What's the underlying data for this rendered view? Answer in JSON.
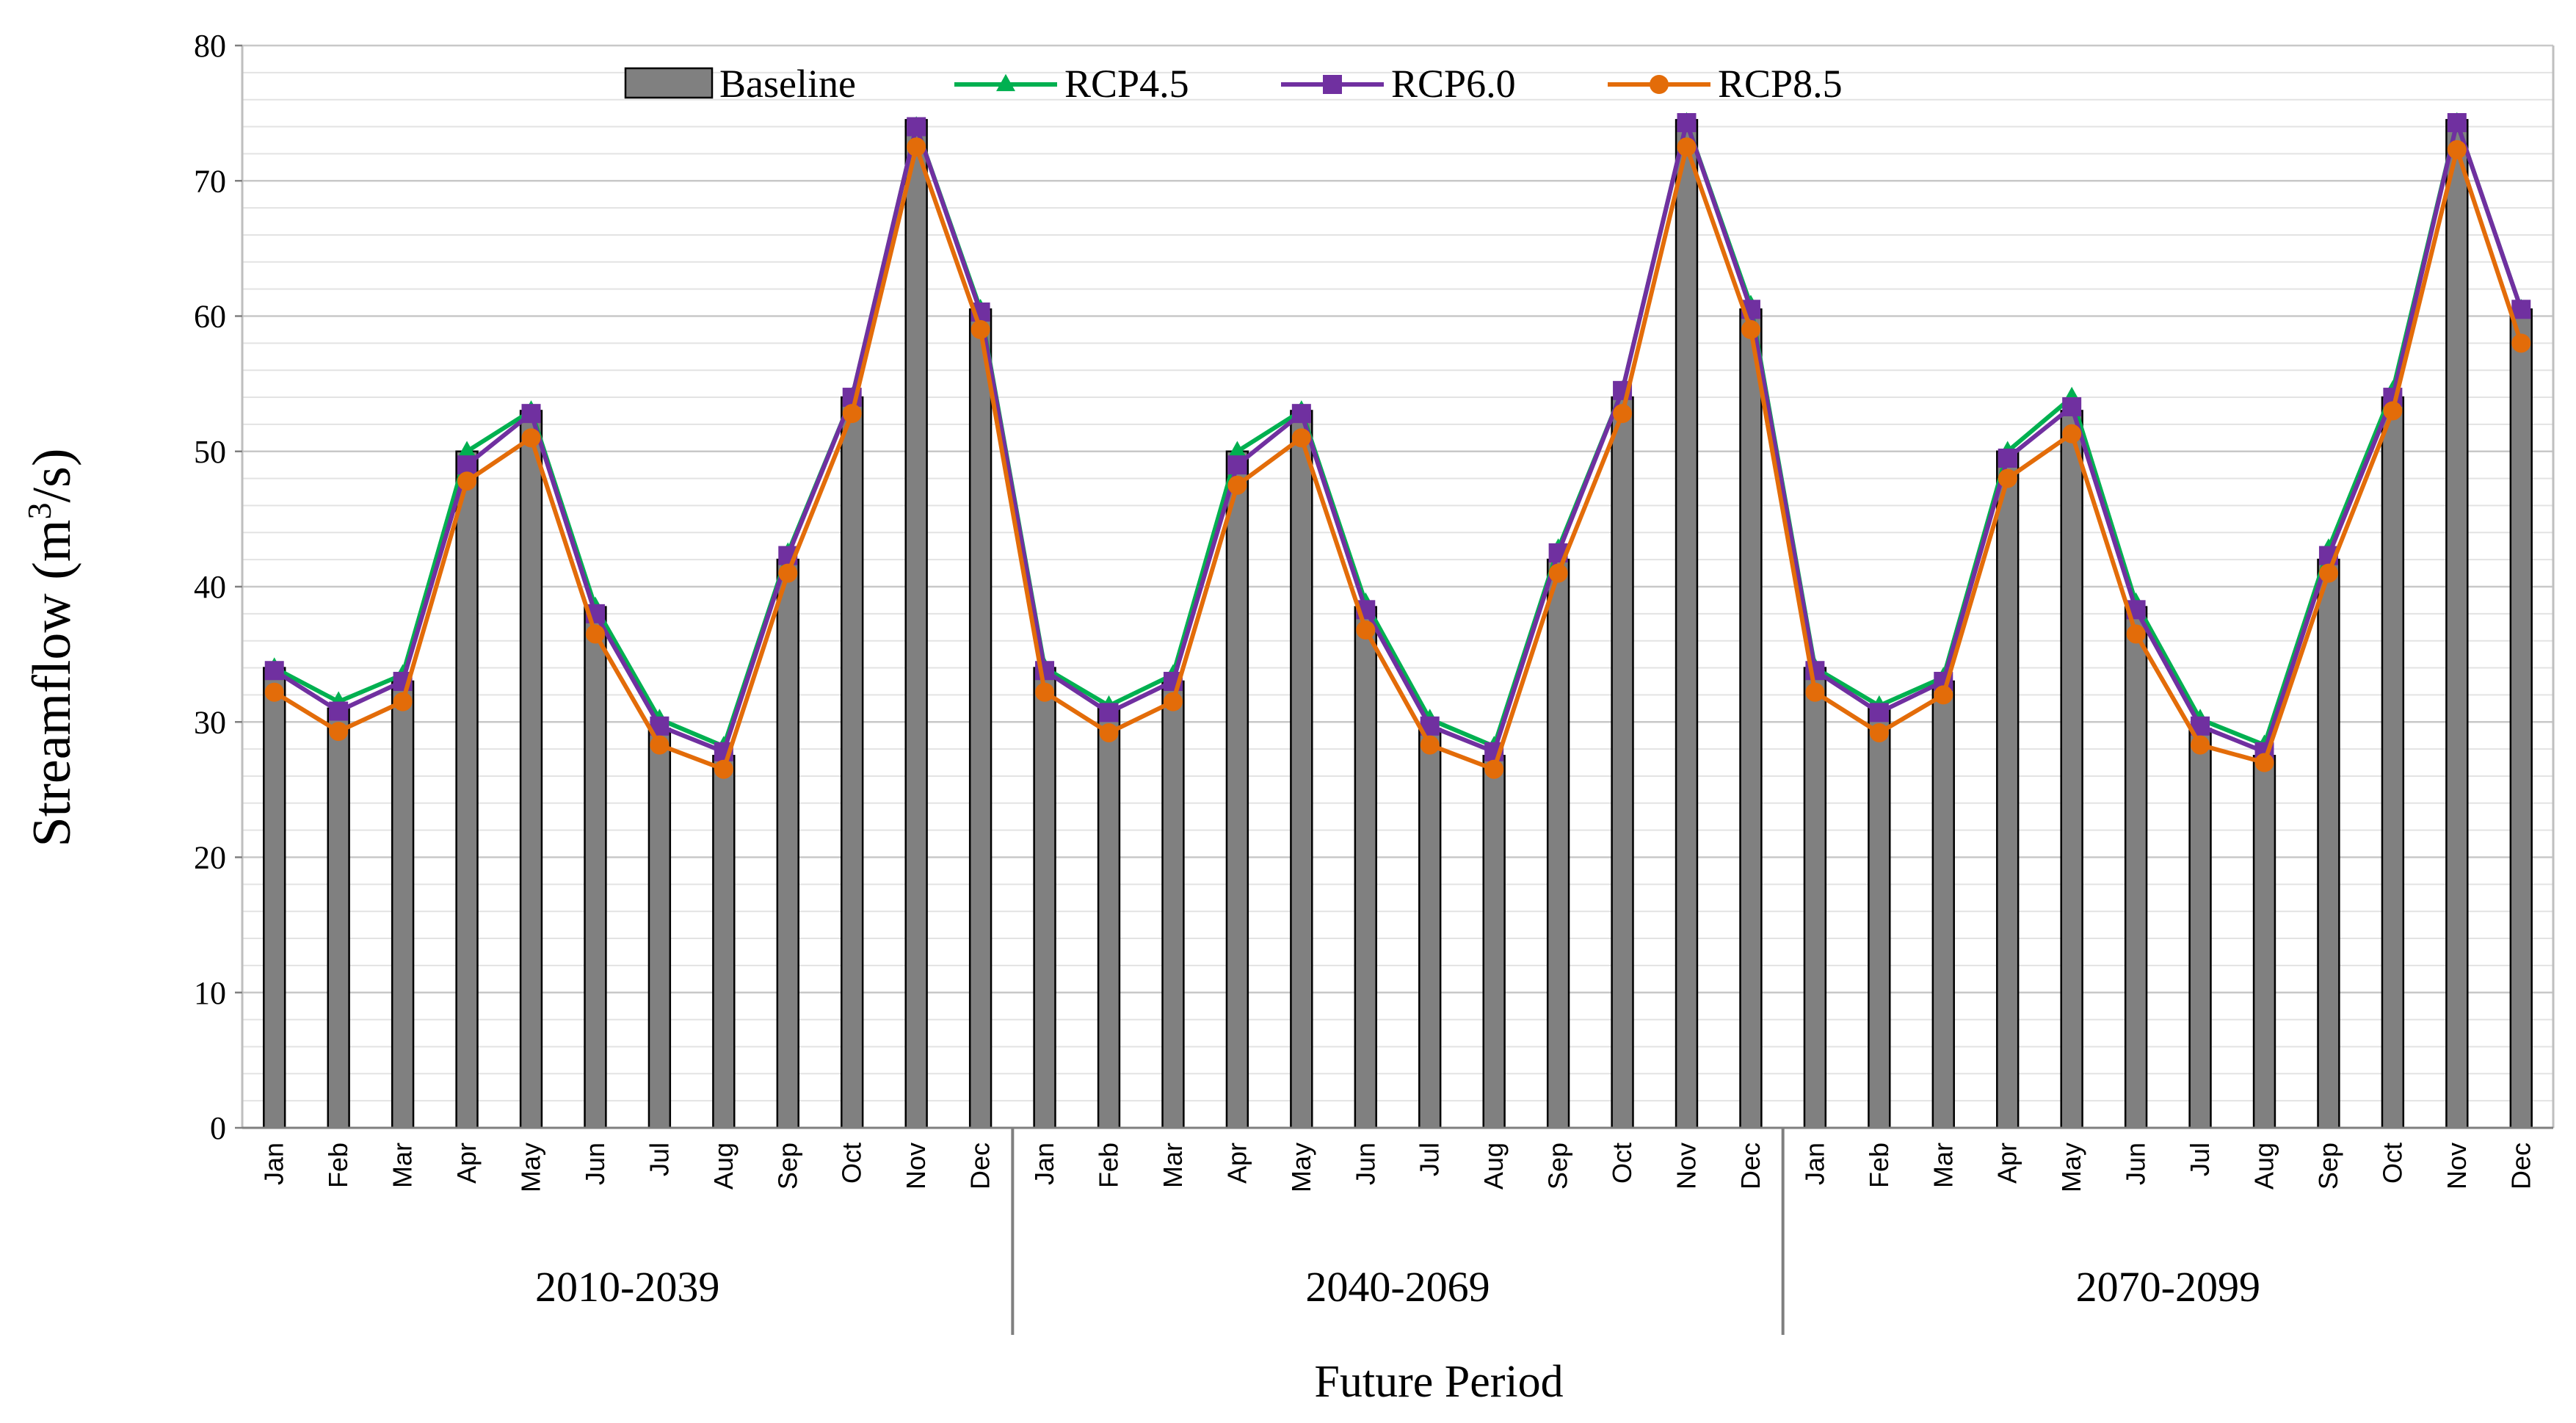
{
  "chart_data": {
    "type": "bar",
    "title": "",
    "ylabel": "Streamflow (m",
    "ylabel_sup": "3",
    "ylabel_tail": "/s)",
    "xlabel": "Future Period",
    "ylim": [
      0,
      80
    ],
    "yticks": [
      0,
      10,
      20,
      30,
      40,
      50,
      60,
      70,
      80
    ],
    "grid": true,
    "legend_position": "top",
    "periods": [
      "2010-2039",
      "2040-2069",
      "2070-2099"
    ],
    "months": [
      "Jan",
      "Feb",
      "Mar",
      "Apr",
      "May",
      "Jun",
      "Jul",
      "Aug",
      "Sep",
      "Oct",
      "Nov",
      "Dec"
    ],
    "bar_series": {
      "name": "Baseline",
      "color": "#808080",
      "values": [
        34,
        31,
        33,
        50,
        53,
        38.5,
        29.5,
        27.5,
        42,
        54,
        74.5,
        60.5,
        34,
        31,
        33,
        50,
        53,
        38.5,
        29.5,
        27.5,
        42,
        54,
        74.5,
        60.5,
        34,
        31,
        33,
        50,
        53,
        38.5,
        29.5,
        27.5,
        42,
        54,
        74.5,
        60.5
      ]
    },
    "line_series": [
      {
        "name": "RCP4.5",
        "color": "#00b050",
        "marker": "triangle",
        "values": [
          34,
          31.5,
          33.5,
          50,
          53,
          38.5,
          30.2,
          28.2,
          42.5,
          54,
          74,
          60.5,
          34,
          31.2,
          33.5,
          50,
          53,
          38.8,
          30.2,
          28.2,
          42.8,
          54.5,
          74.3,
          60.8,
          34,
          31.2,
          33.3,
          50,
          54,
          38.8,
          30.2,
          28.3,
          42.8,
          54.5,
          74.3,
          60.5
        ]
      },
      {
        "name": "RCP6.0",
        "color": "#7030a0",
        "marker": "square",
        "values": [
          33.8,
          30.8,
          33,
          49,
          52.8,
          38,
          29.7,
          27.8,
          42.3,
          54,
          74,
          60.3,
          33.8,
          30.7,
          33,
          49,
          52.8,
          38.3,
          29.7,
          27.8,
          42.5,
          54.5,
          74.3,
          60.5,
          33.8,
          30.7,
          33,
          49.5,
          53.3,
          38.3,
          29.7,
          27.8,
          42.3,
          54,
          74.3,
          60.5
        ]
      },
      {
        "name": "RCP8.5",
        "color": "#e36c09",
        "marker": "circle",
        "values": [
          32.2,
          29.3,
          31.5,
          47.8,
          51,
          36.5,
          28.3,
          26.5,
          41,
          52.8,
          72.5,
          59,
          32.2,
          29.2,
          31.5,
          47.5,
          51,
          36.8,
          28.3,
          26.5,
          41,
          52.8,
          72.5,
          59,
          32.2,
          29.2,
          32,
          48,
          51.3,
          36.5,
          28.3,
          27,
          41,
          53,
          72.3,
          58
        ]
      }
    ]
  }
}
